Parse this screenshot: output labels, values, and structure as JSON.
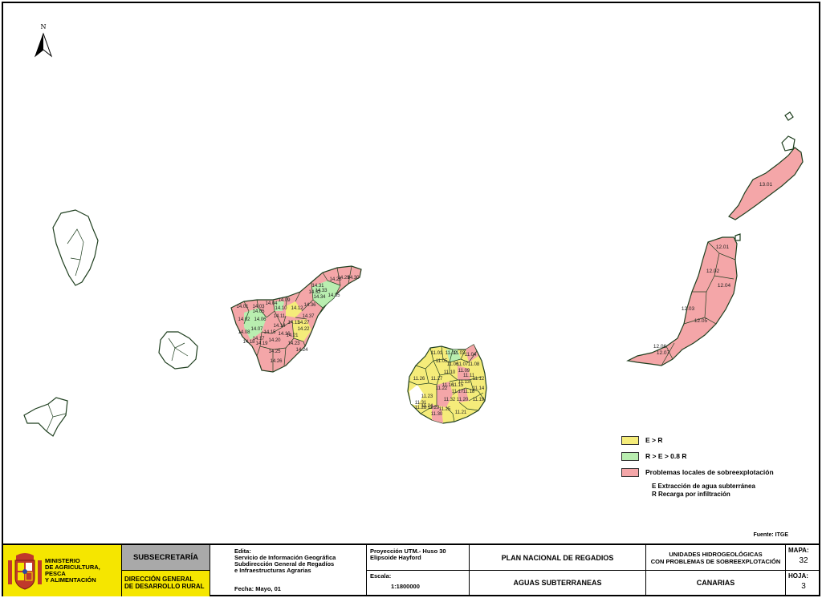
{
  "map": {
    "north_label": "N",
    "zone_labels": {
      "lanzarote": [
        "13.01"
      ],
      "fuerteventura": [
        "12.01",
        "12.02",
        "12.04",
        "12.03",
        "12.05",
        "12.06",
        "12.07"
      ],
      "tenerife": [
        "14.28",
        "14.29",
        "14.30",
        "14.31",
        "14.32",
        "14.33",
        "14.34",
        "14.35",
        "14.36",
        "14.37",
        "14.01",
        "14.02",
        "14.03",
        "14.04",
        "14.05",
        "14.06",
        "14.07",
        "14.08",
        "14.09",
        "14.10",
        "14.11",
        "14.12",
        "14.13",
        "14.14",
        "14.15",
        "14.16",
        "14.17",
        "14.18",
        "14.19",
        "14.20",
        "14.21",
        "14.22",
        "14.23",
        "14.24",
        "14.25",
        "14.26",
        "14.27"
      ],
      "gran_canaria": [
        "11.01",
        "11.02",
        "11.03",
        "11.04",
        "11.05",
        "11.06",
        "11.07",
        "11.08",
        "11.09",
        "11.10",
        "11.11",
        "11.12",
        "11.13",
        "11.14",
        "11.15",
        "11.16",
        "11.17",
        "11.18",
        "11.19",
        "11.20",
        "11.21",
        "11.22",
        "11.23",
        "11.24",
        "11.25",
        "11.26",
        "11.27",
        "11.28",
        "11.29",
        "11.30",
        "11.31",
        "11.32"
      ]
    }
  },
  "legend": {
    "items": [
      {
        "label": "E > R",
        "color": "#f5ec7a"
      },
      {
        "label": "R > E > 0.8 R",
        "color": "#b9eeb0"
      },
      {
        "label": "Problemas locales de sobreexplotación",
        "color": "#f4a6a8"
      }
    ],
    "notes": [
      "E  Extracción de agua subterránea",
      "R  Recarga por infiltración"
    ]
  },
  "source": "Fuente: ITGE",
  "footer": {
    "ministry": "MINISTERIO\nDE AGRICULTURA, PESCA\nY ALIMENTACIÓN",
    "subsecretaria": "SUBSECRETARÍA",
    "direccion": "DIRECCIÓN GENERAL\nDE DESARROLLO RURAL",
    "edita_title": "Edita:",
    "edita_lines": "Servicio de Información Geográfica\nSubdirección General de Regadíos\ne Infraestructuras Agrarias",
    "fecha": "Fecha: Mayo, 01",
    "proyeccion": "Proyección UTM.- Huso 30\nElipsoide Hayford",
    "escala_label": "Escala:",
    "escala_value": "1:1800000",
    "plan": "PLAN NACIONAL DE REGADIOS",
    "aguas": "AGUAS SUBTERRANEAS",
    "unidades": "UNIDADES HIDROGEOLÓGICAS\nCON PROBLEMAS DE SOBREEXPLOTACIÓN",
    "region": "CANARIAS",
    "mapa_label": "MAPA:",
    "mapa_value": "32",
    "hoja_label": "HOJA:",
    "hoja_value": "3"
  },
  "colors": {
    "yellow": "#f5ec7a",
    "green": "#b9eeb0",
    "pink": "#f4a6a8",
    "footer_yellow": "#f5e600"
  }
}
